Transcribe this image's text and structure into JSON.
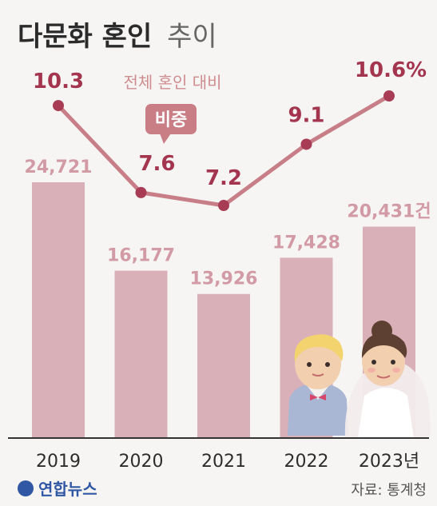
{
  "title": {
    "main": "다문화 혼인",
    "sub": "추이"
  },
  "source": "자료: 통계청",
  "logo": "연합뉴스",
  "note": {
    "label": "전체 혼인 대비",
    "callout": "비중"
  },
  "colors": {
    "bar": "#d9b0b8",
    "bar_label": "#d19aa4",
    "line": "#c77e86",
    "line_point": "#a83c55",
    "line_label": "#a3354f",
    "note": "#cf8c8e",
    "callout_bg": "#c97e85",
    "axis": "#333333"
  },
  "chart_data": {
    "type": "bar+line",
    "categories": [
      "2019",
      "2020",
      "2021",
      "2022",
      "2023년"
    ],
    "series": [
      {
        "type": "bar",
        "values": [
          24721,
          16177,
          13926,
          17428,
          20431
        ],
        "labels": [
          "24,721",
          "16,177",
          "13,926",
          "17,428",
          "20,431건"
        ]
      },
      {
        "type": "line",
        "values": [
          10.3,
          7.6,
          7.2,
          9.1,
          10.6
        ],
        "labels": [
          "10.3",
          "7.6",
          "7.2",
          "9.1",
          "10.6%"
        ]
      }
    ],
    "xlabel": "",
    "ylabel": "",
    "grid": false,
    "legend": "none"
  }
}
